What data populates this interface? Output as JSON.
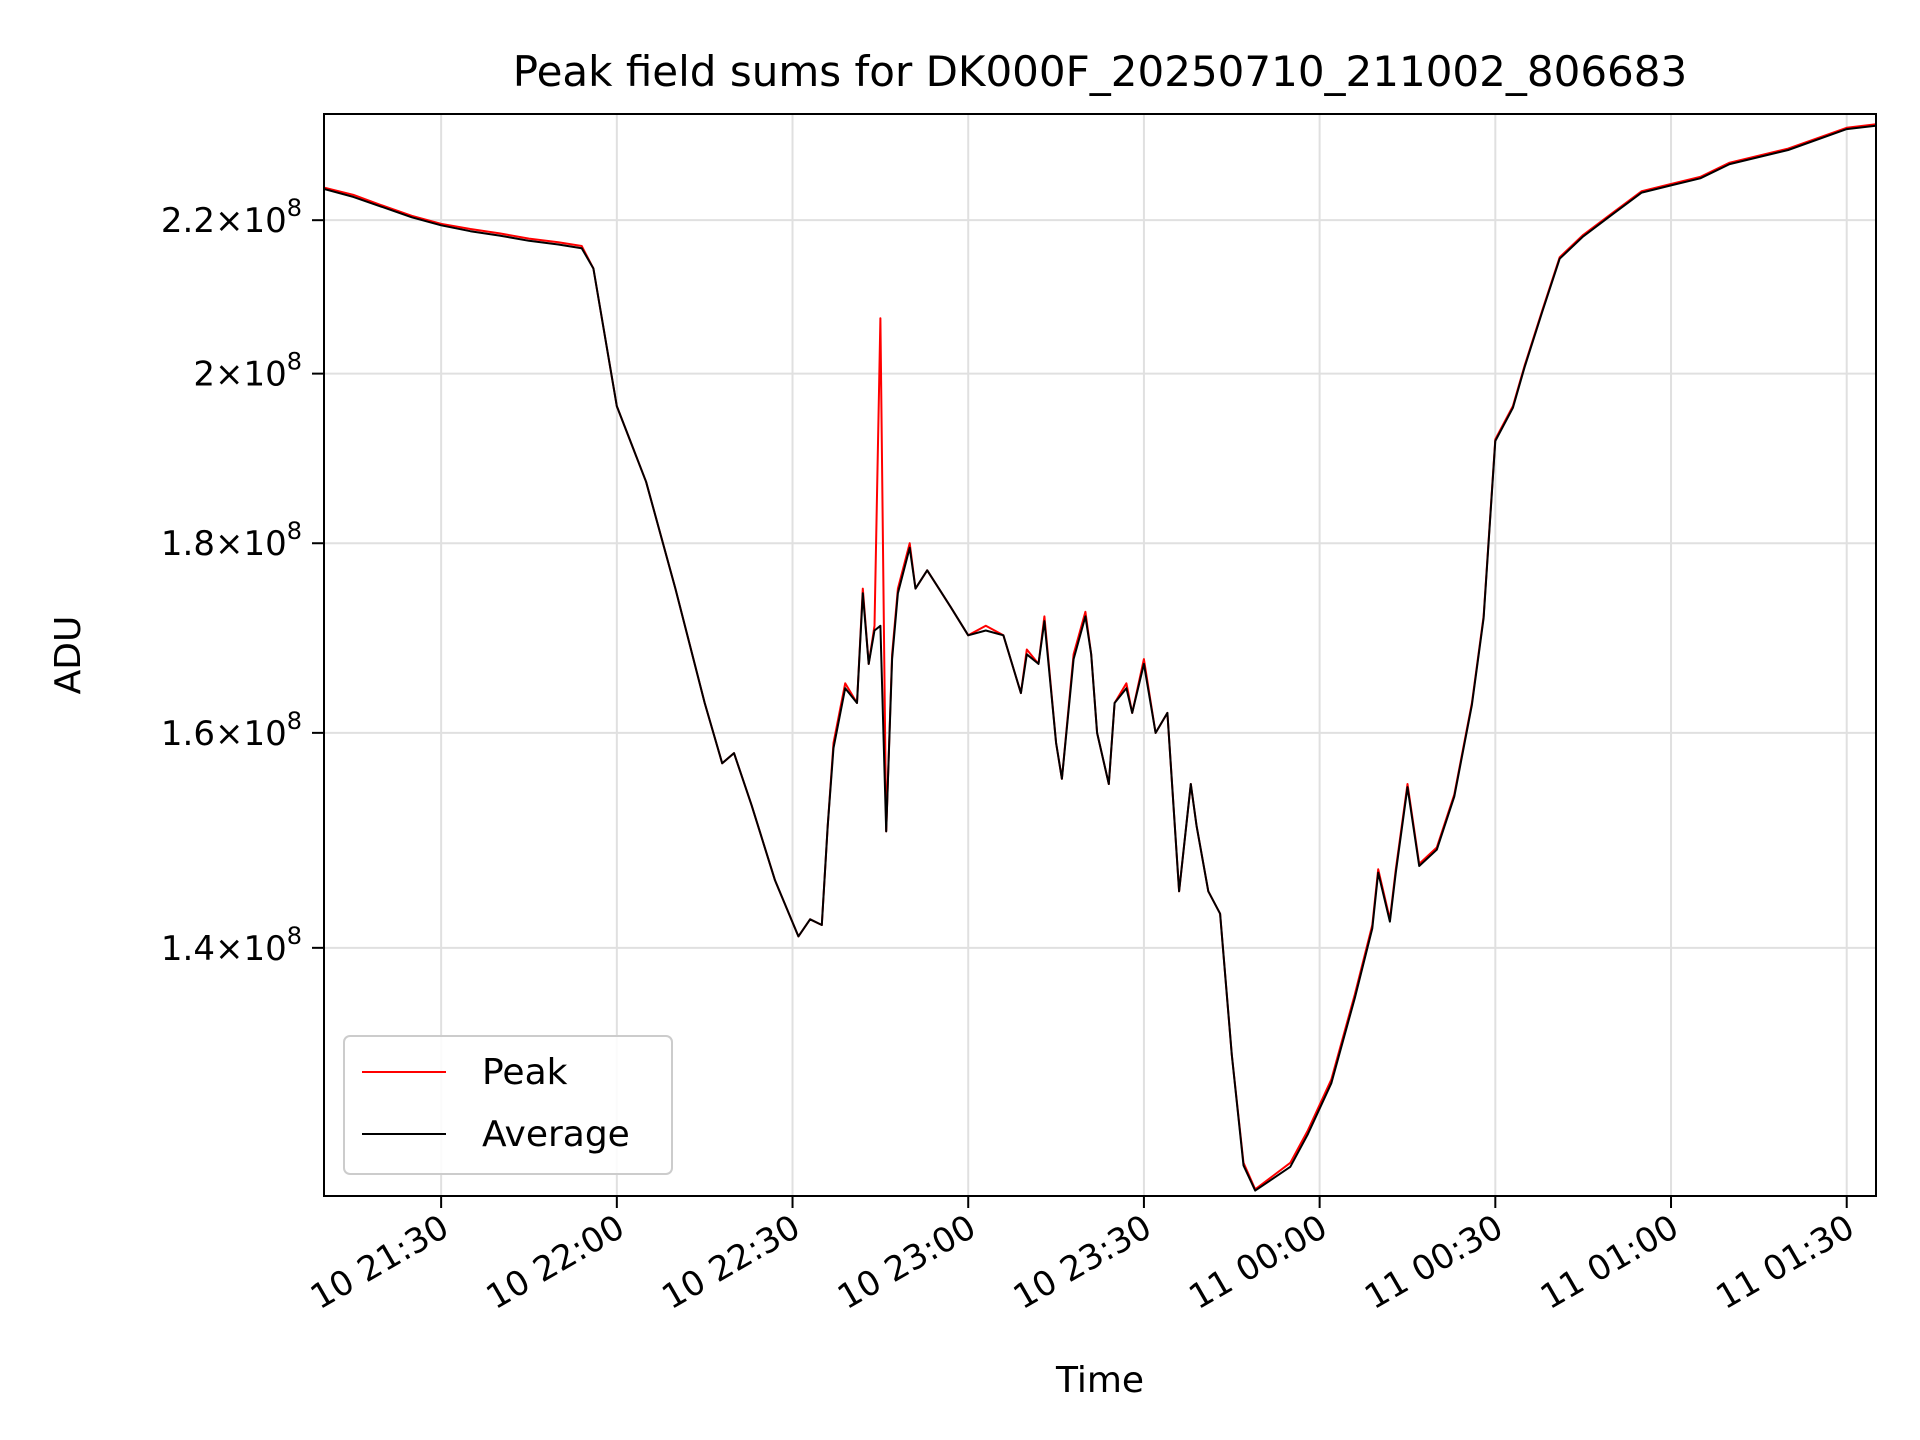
{
  "chart_data": {
    "type": "line",
    "title": "Peak field sums for DK000F_20250710_211002_806683",
    "xlabel": "Time",
    "ylabel": "ADU",
    "y_scale": "log",
    "xlim": [
      "2025-07-10 21:10",
      "2025-07-11 01:35"
    ],
    "ylim": [
      120000000,
      235000000
    ],
    "grid": true,
    "legend_position": "lower-left",
    "x_ticks": [
      {
        "value": "2025-07-10 21:30",
        "label": "10 21:30"
      },
      {
        "value": "2025-07-10 22:00",
        "label": "10 22:00"
      },
      {
        "value": "2025-07-10 22:30",
        "label": "10 22:30"
      },
      {
        "value": "2025-07-10 23:00",
        "label": "10 23:00"
      },
      {
        "value": "2025-07-10 23:30",
        "label": "10 23:30"
      },
      {
        "value": "2025-07-11 00:00",
        "label": "11 00:00"
      },
      {
        "value": "2025-07-11 00:30",
        "label": "11 00:30"
      },
      {
        "value": "2025-07-11 01:00",
        "label": "11 01:00"
      },
      {
        "value": "2025-07-11 01:30",
        "label": "11 01:30"
      }
    ],
    "y_ticks": [
      {
        "value": 140000000,
        "mantissa": "1.4",
        "exponent": "8"
      },
      {
        "value": 160000000,
        "mantissa": "1.6",
        "exponent": "8"
      },
      {
        "value": 180000000,
        "mantissa": "1.8",
        "exponent": "8"
      },
      {
        "value": 200000000,
        "mantissa": "2",
        "exponent": "8"
      },
      {
        "value": 220000000,
        "mantissa": "2.2",
        "exponent": "8"
      }
    ],
    "x": [
      "2025-07-10 21:10",
      "2025-07-10 21:15",
      "2025-07-10 21:20",
      "2025-07-10 21:25",
      "2025-07-10 21:30",
      "2025-07-10 21:35",
      "2025-07-10 21:40",
      "2025-07-10 21:45",
      "2025-07-10 21:50",
      "2025-07-10 21:54",
      "2025-07-10 21:56",
      "2025-07-10 22:00",
      "2025-07-10 22:05",
      "2025-07-10 22:10",
      "2025-07-10 22:15",
      "2025-07-10 22:18",
      "2025-07-10 22:20",
      "2025-07-10 22:23",
      "2025-07-10 22:27",
      "2025-07-10 22:31",
      "2025-07-10 22:33",
      "2025-07-10 22:35",
      "2025-07-10 22:36",
      "2025-07-10 22:37",
      "2025-07-10 22:39",
      "2025-07-10 22:41",
      "2025-07-10 22:42",
      "2025-07-10 22:43",
      "2025-07-10 22:44",
      "2025-07-10 22:45",
      "2025-07-10 22:46",
      "2025-07-10 22:47",
      "2025-07-10 22:48",
      "2025-07-10 22:50",
      "2025-07-10 22:51",
      "2025-07-10 22:53",
      "2025-07-10 22:55",
      "2025-07-10 22:57",
      "2025-07-10 23:00",
      "2025-07-10 23:03",
      "2025-07-10 23:06",
      "2025-07-10 23:09",
      "2025-07-10 23:10",
      "2025-07-10 23:12",
      "2025-07-10 23:13",
      "2025-07-10 23:15",
      "2025-07-10 23:16",
      "2025-07-10 23:18",
      "2025-07-10 23:20",
      "2025-07-10 23:21",
      "2025-07-10 23:22",
      "2025-07-10 23:24",
      "2025-07-10 23:25",
      "2025-07-10 23:27",
      "2025-07-10 23:28",
      "2025-07-10 23:30",
      "2025-07-10 23:32",
      "2025-07-10 23:34",
      "2025-07-10 23:36",
      "2025-07-10 23:38",
      "2025-07-10 23:39",
      "2025-07-10 23:41",
      "2025-07-10 23:43",
      "2025-07-10 23:45",
      "2025-07-10 23:47",
      "2025-07-10 23:49",
      "2025-07-10 23:52",
      "2025-07-10 23:55",
      "2025-07-10 23:58",
      "2025-07-11 00:02",
      "2025-07-11 00:06",
      "2025-07-11 00:09",
      "2025-07-11 00:10",
      "2025-07-11 00:12",
      "2025-07-11 00:13",
      "2025-07-11 00:15",
      "2025-07-11 00:17",
      "2025-07-11 00:20",
      "2025-07-11 00:23",
      "2025-07-11 00:26",
      "2025-07-11 00:28",
      "2025-07-11 00:30",
      "2025-07-11 00:33",
      "2025-07-11 00:35",
      "2025-07-11 00:38",
      "2025-07-11 00:41",
      "2025-07-11 00:45",
      "2025-07-11 00:50",
      "2025-07-11 00:55",
      "2025-07-11 01:00",
      "2025-07-11 01:05",
      "2025-07-11 01:10",
      "2025-07-11 01:20",
      "2025-07-11 01:30",
      "2025-07-11 01:35"
    ],
    "series": [
      {
        "name": "Peak",
        "color": "#ff0000",
        "values": [
          224500000,
          223500000,
          222000000,
          220600000,
          219500000,
          218800000,
          218200000,
          217500000,
          217000000,
          216500000,
          213500000,
          196000000,
          187000000,
          175000000,
          163000000,
          157000000,
          158000000,
          153000000,
          146000000,
          141000000,
          142500000,
          142000000,
          151000000,
          159000000,
          165000000,
          163000000,
          175000000,
          167000000,
          171000000,
          207000000,
          150500000,
          168000000,
          175000000,
          180000000,
          175000000,
          177000000,
          175000000,
          173000000,
          170000000,
          171000000,
          170000000,
          164000000,
          168500000,
          167000000,
          172000000,
          159000000,
          155500000,
          168000000,
          172500000,
          168000000,
          160000000,
          155000000,
          163000000,
          165000000,
          162000000,
          167500000,
          160000000,
          162000000,
          145000000,
          155000000,
          151000000,
          145000000,
          143000000,
          131000000,
          122500000,
          120500000,
          121500000,
          122500000,
          125000000,
          129000000,
          136000000,
          142000000,
          147000000,
          142500000,
          147000000,
          155000000,
          147500000,
          149000000,
          154000000,
          163000000,
          172000000,
          192000000,
          196000000,
          201000000,
          208000000,
          215000000,
          218000000,
          221000000,
          224000000,
          225000000,
          226000000,
          228000000,
          230000000,
          233000000,
          233500000
        ]
      },
      {
        "name": "Average",
        "color": "#000000",
        "values": [
          224300000,
          223200000,
          221800000,
          220400000,
          219300000,
          218500000,
          217900000,
          217200000,
          216700000,
          216200000,
          213500000,
          196000000,
          187000000,
          175000000,
          163000000,
          157000000,
          158000000,
          153000000,
          146000000,
          141000000,
          142500000,
          142000000,
          151000000,
          158500000,
          164500000,
          163000000,
          174500000,
          167000000,
          170500000,
          171000000,
          150500000,
          167500000,
          174500000,
          179500000,
          175000000,
          177000000,
          175000000,
          173000000,
          170000000,
          170500000,
          170000000,
          164000000,
          168000000,
          167000000,
          171500000,
          159000000,
          155500000,
          167500000,
          172000000,
          168000000,
          160000000,
          155000000,
          163000000,
          164500000,
          162000000,
          167000000,
          160000000,
          162000000,
          145000000,
          155000000,
          151000000,
          145000000,
          143000000,
          131000000,
          122300000,
          120400000,
          121300000,
          122200000,
          124700000,
          128700000,
          135700000,
          141700000,
          146700000,
          142300000,
          146700000,
          154700000,
          147300000,
          148800000,
          153800000,
          162800000,
          171800000,
          191800000,
          195800000,
          200800000,
          207800000,
          214800000,
          217800000,
          220800000,
          223800000,
          224800000,
          225800000,
          227800000,
          229800000,
          232800000,
          233300000
        ]
      }
    ]
  }
}
